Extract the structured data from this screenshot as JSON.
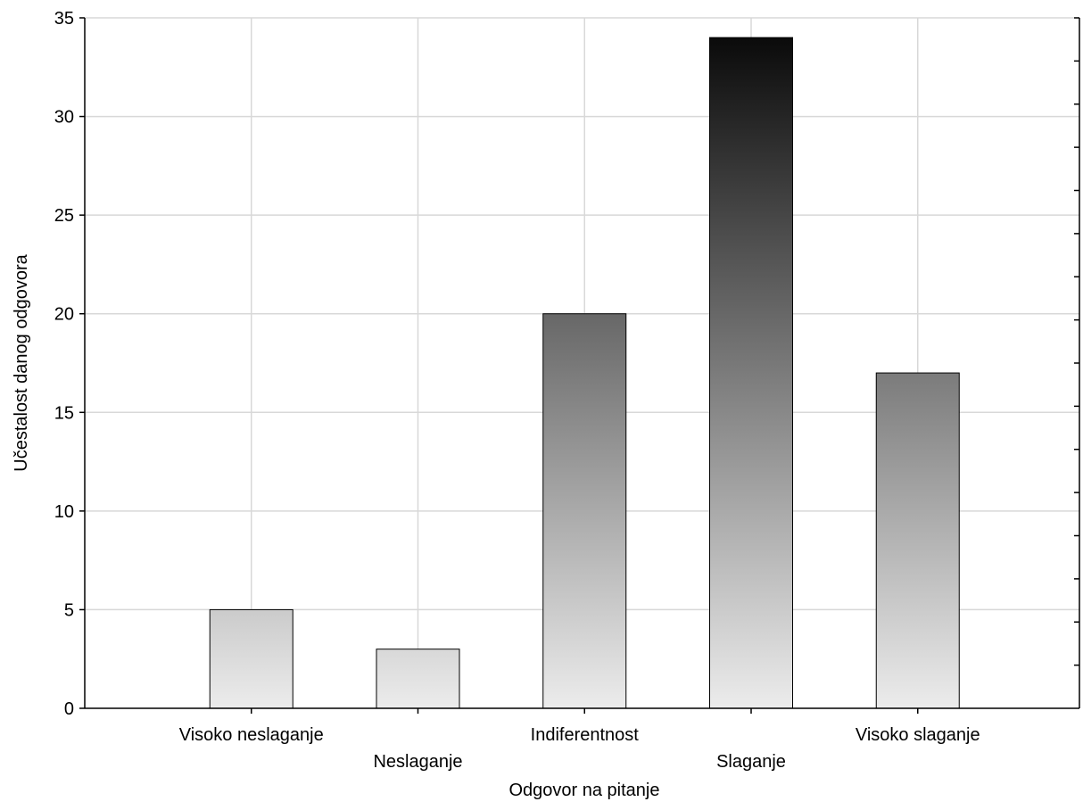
{
  "chart_data": {
    "type": "bar",
    "title": "",
    "xlabel": "Odgovor na pitanje",
    "ylabel": "Učestalost danog odgovora",
    "categories": [
      "Visoko neslaganje",
      "Neslaganje",
      "Indiferentnost",
      "Slaganje",
      "Visoko slaganje"
    ],
    "values": [
      5,
      3,
      20,
      34,
      17
    ],
    "ylim": [
      0,
      35
    ],
    "yticks": [
      0,
      5,
      10,
      15,
      20,
      25,
      30,
      35
    ],
    "grid": true,
    "legend": "none",
    "bar_fill": "vertical gradient, darker toward top of plot",
    "colors": {
      "gradient_top": "#0a0a0a",
      "gradient_bottom": "#ececec",
      "grid": "#d8d8d8"
    }
  }
}
